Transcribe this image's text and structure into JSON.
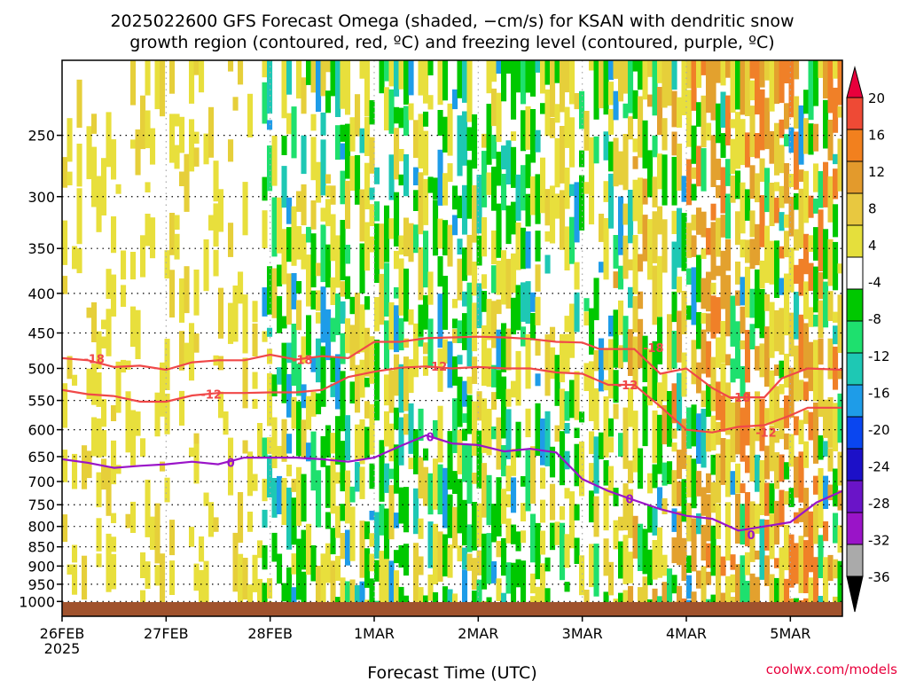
{
  "chart_data": {
    "type": "heatmap",
    "title_line1": "2025022600 GFS Forecast Omega (shaded, −cm/s) for KSAN with dendritic snow",
    "title_line2": "growth region (contoured, red, ºC) and freezing level (contoured, purple, ºC)",
    "xlabel": "Forecast Time (UTC)",
    "credit": "coolwx.com/models",
    "x_ticks": [
      "26FEB",
      "27FEB",
      "28FEB",
      "1MAR",
      "2MAR",
      "3MAR",
      "4MAR",
      "5MAR"
    ],
    "x_tick_year": "2025",
    "x_range_hours": [
      0,
      180
    ],
    "y_ticks": [
      250,
      300,
      350,
      400,
      450,
      500,
      550,
      600,
      650,
      700,
      750,
      800,
      850,
      900,
      950,
      1000
    ],
    "y_range_hpa": [
      1000,
      200
    ],
    "y_scale": "log-pressure",
    "grid": true,
    "colorbar": {
      "ticks": [
        20,
        16,
        12,
        8,
        4,
        -4,
        -8,
        -12,
        -16,
        -20,
        -24,
        -28,
        -32,
        -36
      ],
      "colors": [
        "#e8003c",
        "#ee4a35",
        "#f2801e",
        "#e39a2c",
        "#e8c840",
        "#e5df3c",
        "#ffffff",
        "#00c800",
        "#1ee06e",
        "#1ec8b4",
        "#1e9ce8",
        "#0a46f0",
        "#1c10c8",
        "#6a14c8",
        "#9a14c8",
        "#aaaaaa",
        "#000000"
      ]
    },
    "surface_color": "#a0522d",
    "contours": [
      {
        "label": "-18",
        "color": "#f04848",
        "points": [
          [
            0,
            485
          ],
          [
            6,
            488
          ],
          [
            12,
            498
          ],
          [
            18,
            496
          ],
          [
            24,
            502
          ],
          [
            30,
            491
          ],
          [
            36,
            488
          ],
          [
            42,
            488
          ],
          [
            48,
            480
          ],
          [
            54,
            487
          ],
          [
            60,
            482
          ],
          [
            66,
            485
          ],
          [
            72,
            462
          ],
          [
            78,
            462
          ],
          [
            84,
            457
          ],
          [
            90,
            456
          ],
          [
            96,
            455
          ],
          [
            102,
            456
          ],
          [
            108,
            458
          ],
          [
            114,
            462
          ],
          [
            120,
            463
          ],
          [
            124,
            472
          ],
          [
            132,
            472
          ],
          [
            138,
            508
          ],
          [
            144,
            500
          ],
          [
            150,
            530
          ],
          [
            154,
            545
          ],
          [
            162,
            545
          ],
          [
            166,
            515
          ],
          [
            172,
            500
          ],
          [
            180,
            502
          ]
        ],
        "label_at": [
          [
            5,
            486
          ],
          [
            53,
            487
          ],
          [
            134,
            470
          ],
          [
            154,
            545
          ]
        ]
      },
      {
        "label": "-12",
        "color": "#f04848",
        "points": [
          [
            0,
            533
          ],
          [
            6,
            540
          ],
          [
            12,
            543
          ],
          [
            18,
            552
          ],
          [
            24,
            552
          ],
          [
            30,
            542
          ],
          [
            36,
            538
          ],
          [
            42,
            538
          ],
          [
            48,
            537
          ],
          [
            54,
            537
          ],
          [
            60,
            533
          ],
          [
            66,
            513
          ],
          [
            72,
            505
          ],
          [
            78,
            499
          ],
          [
            84,
            497
          ],
          [
            90,
            500
          ],
          [
            96,
            498
          ],
          [
            102,
            500
          ],
          [
            108,
            500
          ],
          [
            114,
            506
          ],
          [
            120,
            508
          ],
          [
            126,
            525
          ],
          [
            132,
            525
          ],
          [
            138,
            560
          ],
          [
            144,
            600
          ],
          [
            150,
            605
          ],
          [
            156,
            595
          ],
          [
            162,
            592
          ],
          [
            168,
            575
          ],
          [
            172,
            562
          ],
          [
            180,
            562
          ]
        ],
        "label_at": [
          [
            32,
            540
          ],
          [
            84,
            497
          ],
          [
            128,
            525
          ],
          [
            160,
            605
          ]
        ]
      },
      {
        "label": "0",
        "color": "#9a14c8",
        "points": [
          [
            0,
            655
          ],
          [
            6,
            662
          ],
          [
            12,
            672
          ],
          [
            18,
            668
          ],
          [
            24,
            665
          ],
          [
            30,
            660
          ],
          [
            36,
            665
          ],
          [
            42,
            652
          ],
          [
            48,
            652
          ],
          [
            54,
            652
          ],
          [
            60,
            655
          ],
          [
            66,
            660
          ],
          [
            72,
            652
          ],
          [
            78,
            630
          ],
          [
            84,
            610
          ],
          [
            90,
            625
          ],
          [
            96,
            628
          ],
          [
            102,
            640
          ],
          [
            108,
            635
          ],
          [
            114,
            642
          ],
          [
            120,
            695
          ],
          [
            126,
            720
          ],
          [
            132,
            740
          ],
          [
            138,
            760
          ],
          [
            144,
            775
          ],
          [
            150,
            782
          ],
          [
            156,
            810
          ],
          [
            162,
            800
          ],
          [
            168,
            790
          ],
          [
            174,
            745
          ],
          [
            180,
            720
          ]
        ],
        "label_at": [
          [
            38,
            661
          ],
          [
            84,
            613
          ],
          [
            130,
            737
          ],
          [
            158,
            820
          ]
        ]
      }
    ],
    "annotations": [
      "-18",
      "-12",
      "0"
    ]
  }
}
